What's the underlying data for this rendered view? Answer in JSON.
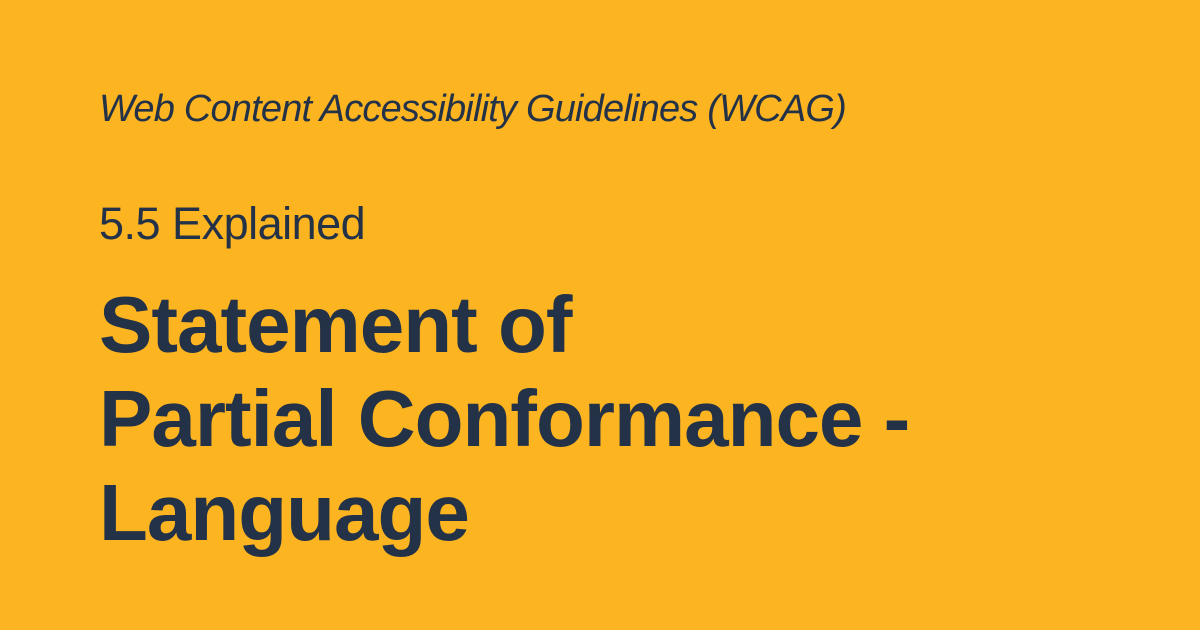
{
  "card": {
    "background_color": "#FCB520",
    "text_color": "#243248",
    "kicker": "Web Content Accessibility Guidelines (WCAG)",
    "section": "5.5 Explained",
    "title_lines": [
      "Statement of",
      "Partial Conformance -",
      "Language"
    ]
  }
}
